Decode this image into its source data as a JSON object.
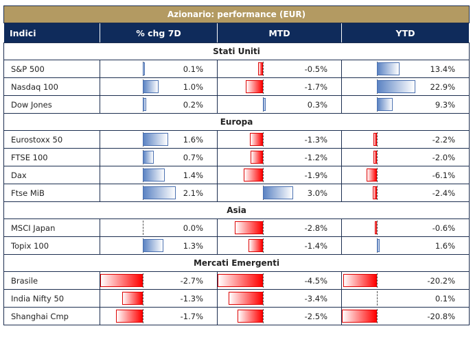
{
  "title": "Azionario: performance (EUR)",
  "headers": [
    "Indici",
    "% chg 7D",
    "MTD",
    "YTD"
  ],
  "colors": {
    "title_bg": "#B39A62",
    "header_bg": "#0F2B5B",
    "positive_bar": "#5b83c3",
    "negative_bar": "#ff0000"
  },
  "sections": [
    {
      "name": "Stati Uniti",
      "rows": [
        {
          "name": "S&P 500",
          "d7": "0.1%",
          "mtd": "-0.5%",
          "ytd": "13.4%"
        },
        {
          "name": "Nasdaq 100",
          "d7": "1.0%",
          "mtd": "-1.7%",
          "ytd": "22.9%"
        },
        {
          "name": "Dow Jones",
          "d7": "0.2%",
          "mtd": "0.3%",
          "ytd": "9.3%"
        }
      ]
    },
    {
      "name": "Europa",
      "rows": [
        {
          "name": "Eurostoxx 50",
          "d7": "1.6%",
          "mtd": "-1.3%",
          "ytd": "-2.2%"
        },
        {
          "name": "FTSE 100",
          "d7": "0.7%",
          "mtd": "-1.2%",
          "ytd": "-2.0%"
        },
        {
          "name": "Dax",
          "d7": "1.4%",
          "mtd": "-1.9%",
          "ytd": "-6.1%"
        },
        {
          "name": "Ftse MiB",
          "d7": "2.1%",
          "mtd": "3.0%",
          "ytd": "-2.4%"
        }
      ]
    },
    {
      "name": "Asia",
      "rows": [
        {
          "name": "MSCI Japan",
          "d7": "0.0%",
          "mtd": "-2.8%",
          "ytd": "-0.6%"
        },
        {
          "name": "Topix 100",
          "d7": "1.3%",
          "mtd": "-1.4%",
          "ytd": "1.6%"
        }
      ]
    },
    {
      "name": "Mercati Emergenti",
      "rows": [
        {
          "name": "Brasile",
          "d7": "-2.7%",
          "mtd": "-4.5%",
          "ytd": "-20.2%"
        },
        {
          "name": "India Nifty 50",
          "d7": "-1.3%",
          "mtd": "-3.4%",
          "ytd": "0.1%"
        },
        {
          "name": "Shanghai Cmp",
          "d7": "-1.7%",
          "mtd": "-2.5%",
          "ytd": "-20.8%"
        }
      ]
    }
  ]
}
